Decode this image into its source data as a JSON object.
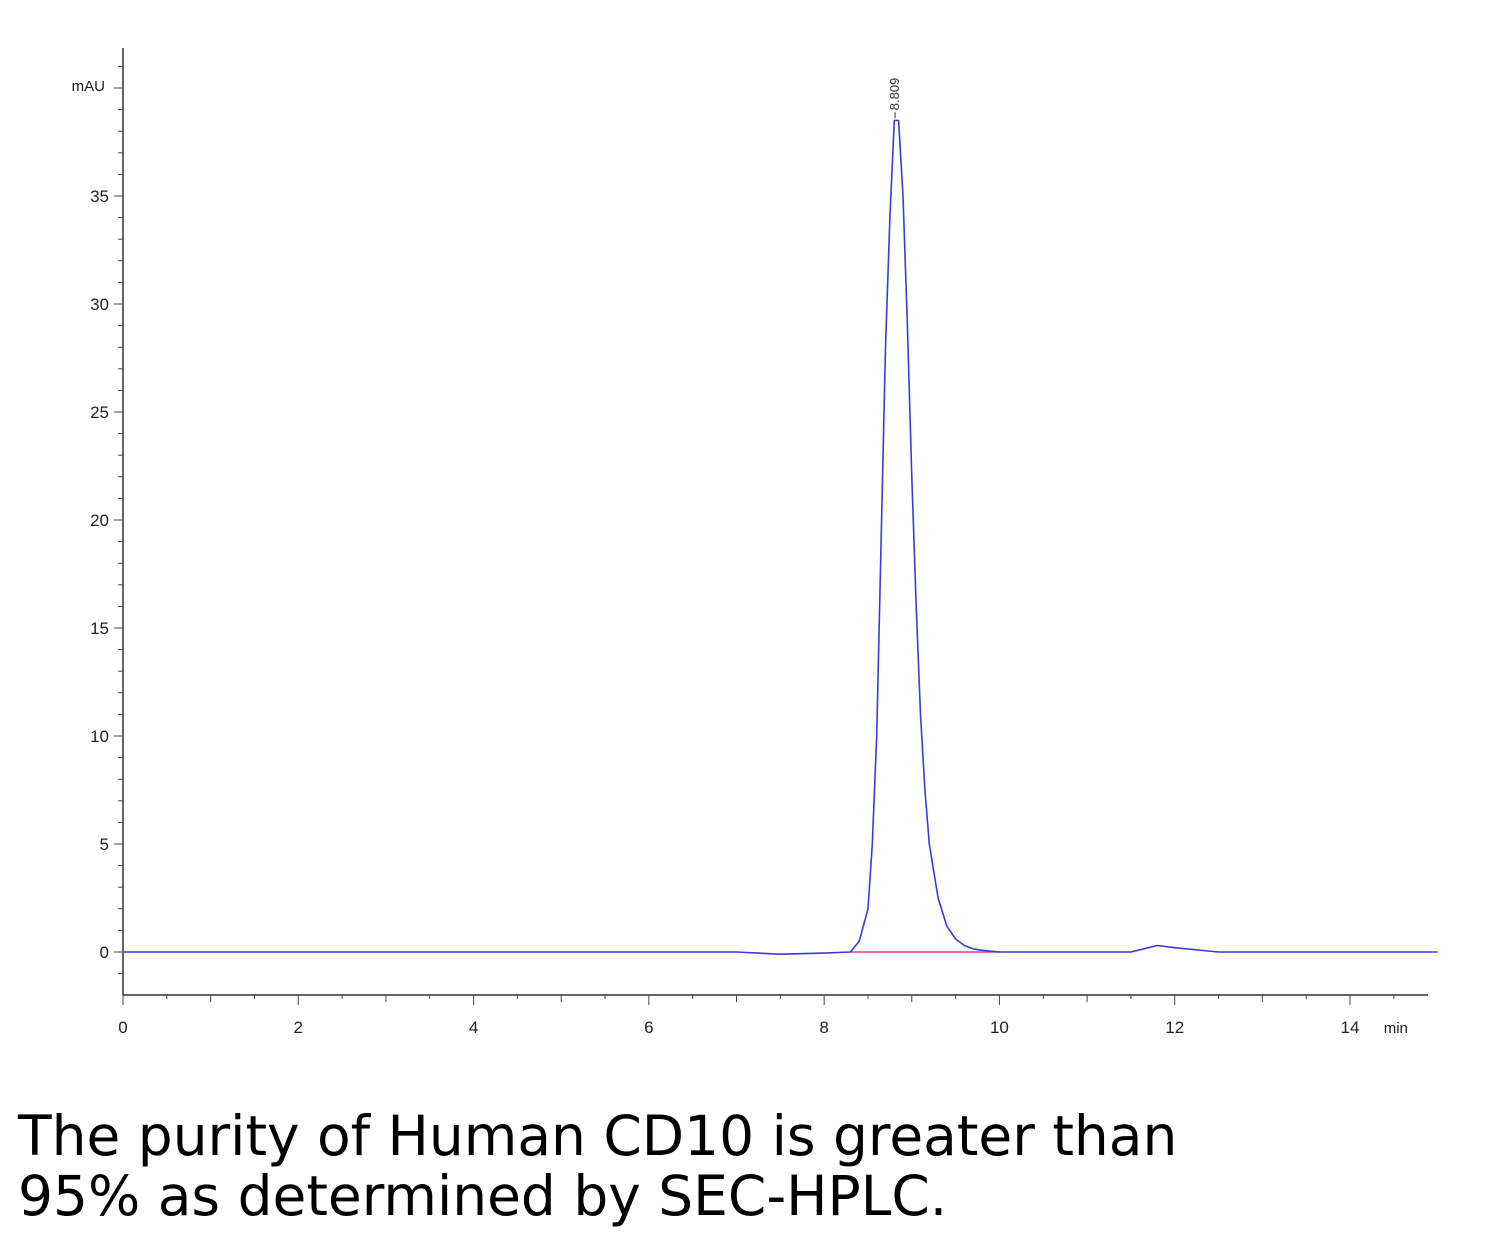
{
  "chart_data": {
    "type": "line",
    "title": "",
    "xlabel": "min",
    "ylabel": "mAU",
    "xlim": [
      0,
      15
    ],
    "ylim": [
      -2,
      41
    ],
    "x_ticks": [
      0,
      2,
      4,
      6,
      8,
      10,
      12,
      14
    ],
    "x_tick_labels": [
      "0",
      "2",
      "4",
      "6",
      "8",
      "10",
      "12",
      "14"
    ],
    "y_ticks": [
      0,
      5,
      10,
      15,
      20,
      25,
      30,
      35
    ],
    "y_tick_labels": [
      "0",
      "5",
      "10",
      "15",
      "20",
      "25",
      "30",
      "35"
    ],
    "grid": false,
    "legend": "none",
    "series": [
      {
        "color": "#3b3bd6",
        "x": [
          0,
          1,
          2,
          3,
          4,
          5,
          6,
          7,
          7.5,
          8,
          8.3,
          8.4,
          8.5,
          8.55,
          8.6,
          8.65,
          8.7,
          8.75,
          8.8,
          8.85,
          8.9,
          8.95,
          9.0,
          9.05,
          9.1,
          9.15,
          9.2,
          9.3,
          9.4,
          9.5,
          9.6,
          9.7,
          9.8,
          10,
          10.5,
          11,
          11.5,
          11.8,
          12,
          12.5,
          13,
          14,
          15
        ],
        "y": [
          0,
          0,
          0,
          0,
          0,
          0,
          0,
          0,
          -0.1,
          -0.05,
          0,
          0.5,
          2,
          5,
          10,
          19,
          28,
          34,
          38.5,
          38.5,
          35,
          29,
          22,
          16,
          11,
          7.5,
          5,
          2.5,
          1.2,
          0.6,
          0.3,
          0.15,
          0.08,
          0,
          0,
          0,
          0,
          0.3,
          0.2,
          0,
          0,
          0,
          0
        ]
      }
    ],
    "baseline": {
      "color": "#e0408a",
      "x": [
        8.3,
        10
      ],
      "y": [
        0,
        0
      ]
    },
    "peak_annotation": {
      "x": 8.809,
      "label": "8.809"
    }
  },
  "caption": {
    "line1": "The purity of Human CD10 is greater than",
    "line2": "95% as determined by SEC-HPLC."
  }
}
